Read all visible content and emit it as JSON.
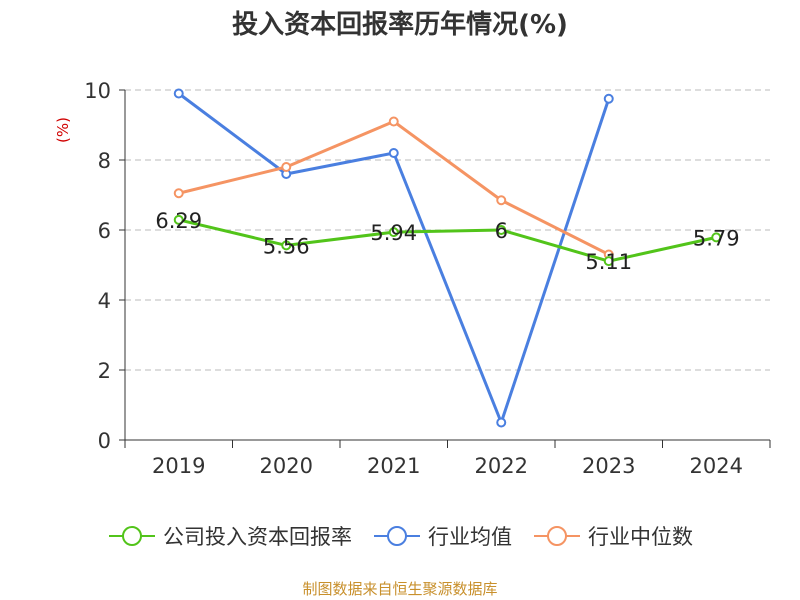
{
  "title": "投入资本回报率历年情况(%)",
  "source": "制图数据来自恒生聚源数据库",
  "chart_data": {
    "type": "line",
    "title": "投入资本回报率历年情况(%)",
    "ylabel": "(%)",
    "ylim": [
      0,
      10
    ],
    "yticks": [
      0,
      2,
      4,
      6,
      8,
      10
    ],
    "categories": [
      "2019",
      "2020",
      "2021",
      "2022",
      "2023",
      "2024"
    ],
    "grid": true,
    "legend_position": "bottom",
    "series": [
      {
        "name": "公司投入资本回报率",
        "color": "#52c41a",
        "values": [
          6.29,
          5.56,
          5.94,
          6,
          5.11,
          5.79
        ],
        "labels": [
          "6.29",
          "5.56",
          "5.94",
          "6",
          "5.11",
          "5.79"
        ]
      },
      {
        "name": "行业均值",
        "color": "#4a7fe0",
        "values": [
          9.9,
          7.6,
          8.2,
          0.5,
          9.75,
          null
        ]
      },
      {
        "name": "行业中位数",
        "color": "#f59463",
        "values": [
          7.05,
          7.8,
          9.1,
          6.85,
          5.3,
          null
        ]
      }
    ]
  }
}
